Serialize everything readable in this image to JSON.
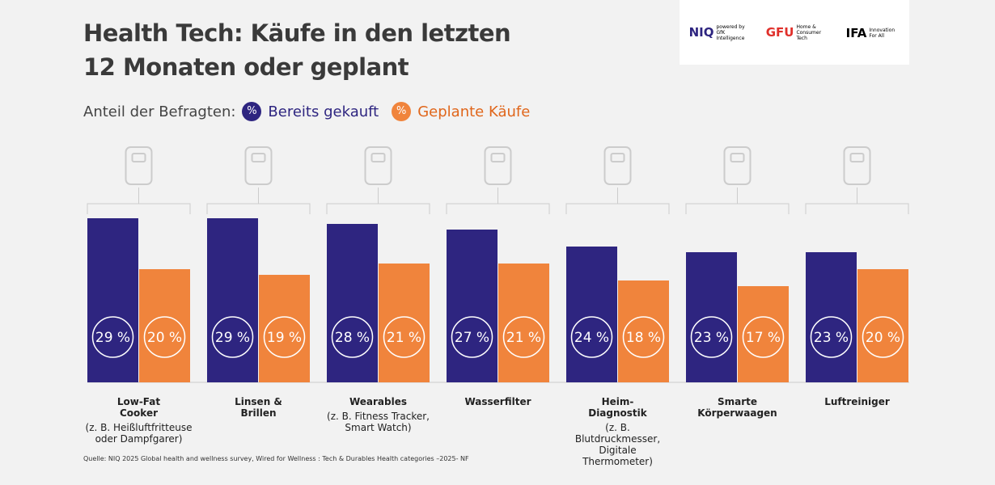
{
  "chart_data": {
    "type": "bar",
    "title_lines": [
      "Health Tech: Käufe in den letzten",
      "12 Monaten oder geplant"
    ],
    "legend_prefix": "Anteil der Befragten:",
    "legend_symbol": "%",
    "categories": [
      "Low-Fat Cooker",
      "Linsen & Brillen",
      "Wearables",
      "Wasserfilter",
      "Heim-Diagnostik",
      "Smarte Körperwaagen",
      "Luftreiniger"
    ],
    "category_notes": [
      "(z. B. Heißluftfritteuse oder Dampfgarer)",
      null,
      "(z. B. Fitness Tracker, Smart Watch)",
      null,
      "(z. B. Blutdruckmesser, Digitale Thermometer)",
      null,
      null
    ],
    "series": [
      {
        "name": "Bereits gekauft",
        "color": "#2e2580",
        "values": [
          29,
          29,
          28,
          27,
          24,
          23,
          23
        ],
        "value_labels": [
          "29 %",
          "29 %",
          "28 %",
          "27 %",
          "24 %",
          "23 %",
          "23 %"
        ]
      },
      {
        "name": "Geplante Käufe",
        "color": "#f0843c",
        "values": [
          20,
          19,
          21,
          21,
          18,
          17,
          20
        ],
        "value_labels": [
          "20 %",
          "19 %",
          "21 %",
          "21 %",
          "18 %",
          "17 %",
          "20 %"
        ]
      }
    ],
    "source": "Quelle: NIQ 2025 Global health and wellness survey, Wired for Wellness : Tech & Durables Health categories –2025- NF"
  },
  "logos": {
    "niq": "NIQ",
    "niq_note": "powered by GfK Intelligence",
    "gfu": "GFU",
    "gfu_note": "Home & Consumer Tech",
    "ifa": "IFA",
    "ifa_note": "Innovation For All"
  }
}
